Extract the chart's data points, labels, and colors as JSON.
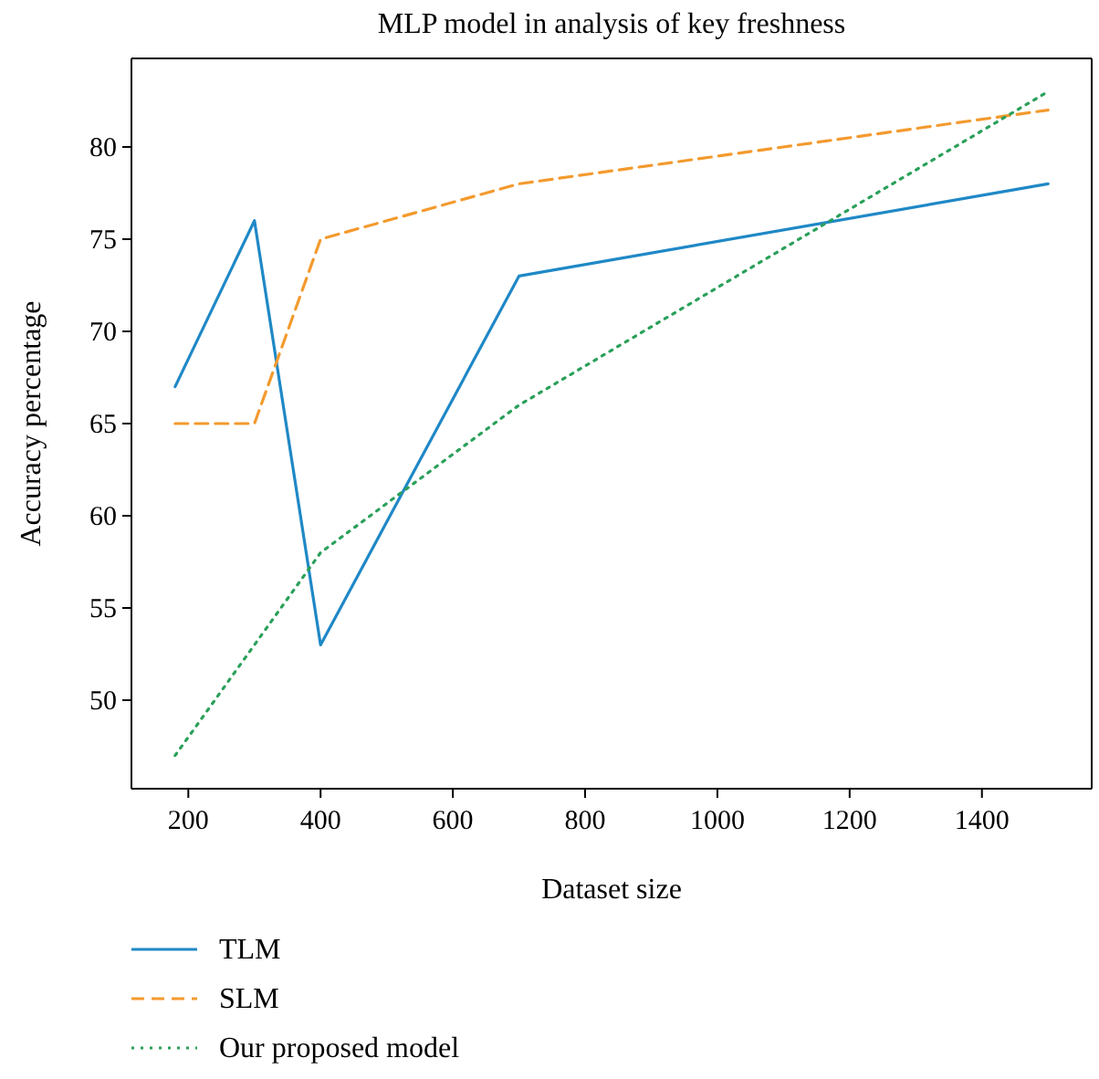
{
  "chart_data": {
    "type": "line",
    "title": "MLP model in analysis of key freshness",
    "xlabel": "Dataset size",
    "ylabel": "Accuracy percentage",
    "x": [
      180,
      300,
      400,
      700,
      1500
    ],
    "series": [
      {
        "name": "TLM",
        "color": "#1f88c6",
        "values": [
          67,
          76,
          53,
          73,
          78
        ],
        "line_style": "solid"
      },
      {
        "name": "SLM",
        "color": "#f39a2e",
        "values": [
          65,
          65,
          75,
          78,
          82
        ],
        "line_style": "dashed"
      },
      {
        "name": "Our proposed model",
        "color": "#2aa05a",
        "values": [
          47,
          53,
          58,
          66,
          83
        ],
        "line_style": "dotted"
      }
    ],
    "xlim": [
      114,
      1566
    ],
    "ylim": [
      45.2,
      84.8
    ],
    "xticks": [
      200,
      400,
      600,
      800,
      1000,
      1200,
      1400
    ],
    "yticks": [
      50,
      55,
      60,
      65,
      70,
      75,
      80
    ],
    "legend": "bottom",
    "grid": false,
    "marker": "none"
  }
}
